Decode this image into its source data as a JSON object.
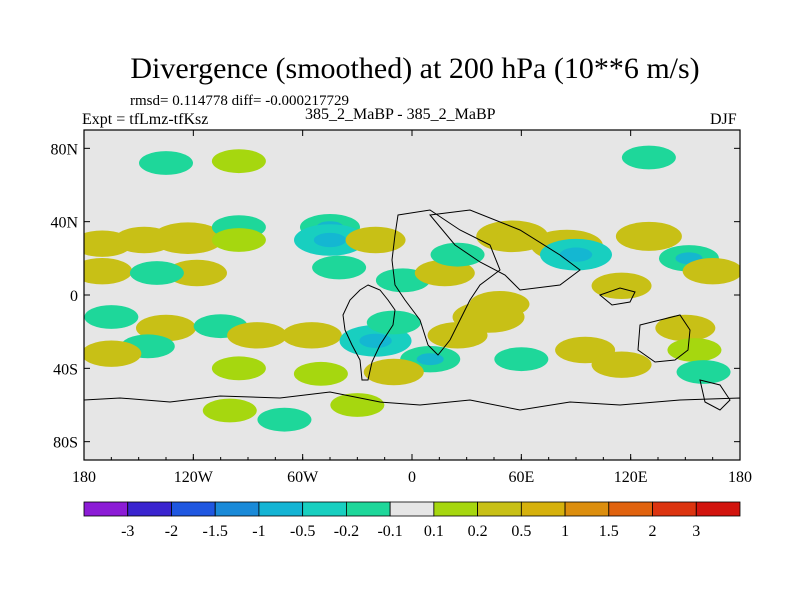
{
  "figure": {
    "title": "Divergence (smoothed) at 200 hPa (10**6 m/s)",
    "stats": "rmsd= 0.114778 diff= -0.000217729",
    "expt": "Expt = tfLmz-tfKsz",
    "center_label": "385_2_MaBP - 385_2_MaBP",
    "season": "DJF"
  },
  "chart_data": {
    "type": "heatmap",
    "title": "Divergence (smoothed) at 200 hPa (10**6 m/s)",
    "subtitle": "385_2_MaBP - 385_2_MaBP",
    "variable_units": "10**6 m/s",
    "xlim": [
      -180,
      180
    ],
    "ylim": [
      -90,
      90
    ],
    "x_ticks": [
      {
        "value": -180,
        "label": "180"
      },
      {
        "value": -120,
        "label": "120W"
      },
      {
        "value": -60,
        "label": "60W"
      },
      {
        "value": 0,
        "label": "0"
      },
      {
        "value": 60,
        "label": "60E"
      },
      {
        "value": 120,
        "label": "120E"
      },
      {
        "value": 180,
        "label": "180"
      }
    ],
    "y_ticks": [
      {
        "value": 80,
        "label": "80N"
      },
      {
        "value": 40,
        "label": "40N"
      },
      {
        "value": 0,
        "label": "0"
      },
      {
        "value": -40,
        "label": "40S"
      },
      {
        "value": -80,
        "label": "80S"
      }
    ],
    "colorbar": {
      "colors": [
        "#8c1cd6",
        "#3a24cf",
        "#1f57e0",
        "#1a8ad8",
        "#14b4d4",
        "#18cfc0",
        "#1ed79a",
        "#e6e6e6",
        "#a6d70f",
        "#c8c016",
        "#d6b10c",
        "#dc8e0e",
        "#e0620e",
        "#dc3410",
        "#d2140e"
      ],
      "boundaries": [
        "-3",
        "-2",
        "-1.5",
        "-1",
        "-0.5",
        "-0.2",
        "-0.1",
        "0.1",
        "0.2",
        "0.5",
        "1",
        "1.5",
        "2",
        "3"
      ]
    },
    "anomalies": [
      {
        "lon": -170,
        "lat": 28,
        "value": 0.2
      },
      {
        "lon": -147,
        "lat": 30,
        "value": 0.2
      },
      {
        "lon": -170,
        "lat": 13,
        "value": 0.2
      },
      {
        "lon": -123,
        "lat": 31,
        "value": 0.3
      },
      {
        "lon": -118,
        "lat": 12,
        "value": 0.2
      },
      {
        "lon": -140,
        "lat": 12,
        "value": -0.15
      },
      {
        "lon": -95,
        "lat": 37,
        "value": -0.15
      },
      {
        "lon": -95,
        "lat": 30,
        "value": 0.15
      },
      {
        "lon": -45,
        "lat": 37,
        "value": -0.2
      },
      {
        "lon": -45,
        "lat": 30,
        "value": -0.3
      },
      {
        "lon": -20,
        "lat": 30,
        "value": 0.2
      },
      {
        "lon": -40,
        "lat": 15,
        "value": -0.15
      },
      {
        "lon": -5,
        "lat": 8,
        "value": -0.15
      },
      {
        "lon": 18,
        "lat": 12,
        "value": 0.2
      },
      {
        "lon": 25,
        "lat": 22,
        "value": -0.15
      },
      {
        "lon": 55,
        "lat": 32,
        "value": 0.3
      },
      {
        "lon": 85,
        "lat": 27,
        "value": 0.3
      },
      {
        "lon": 90,
        "lat": 22,
        "value": -0.3
      },
      {
        "lon": 130,
        "lat": 32,
        "value": 0.25
      },
      {
        "lon": 152,
        "lat": 20,
        "value": -0.2
      },
      {
        "lon": 165,
        "lat": 13,
        "value": 0.2
      },
      {
        "lon": 115,
        "lat": 5,
        "value": 0.2
      },
      {
        "lon": -165,
        "lat": -12,
        "value": -0.15
      },
      {
        "lon": -135,
        "lat": -18,
        "value": 0.2
      },
      {
        "lon": -145,
        "lat": -28,
        "value": -0.15
      },
      {
        "lon": -165,
        "lat": -32,
        "value": 0.2
      },
      {
        "lon": -105,
        "lat": -17,
        "value": -0.15
      },
      {
        "lon": -85,
        "lat": -22,
        "value": 0.2
      },
      {
        "lon": -55,
        "lat": -22,
        "value": 0.2
      },
      {
        "lon": -20,
        "lat": -25,
        "value": -0.3
      },
      {
        "lon": -10,
        "lat": -15,
        "value": -0.15
      },
      {
        "lon": 10,
        "lat": -35,
        "value": -0.2
      },
      {
        "lon": 42,
        "lat": -12,
        "value": 0.3
      },
      {
        "lon": 48,
        "lat": -5,
        "value": 0.2
      },
      {
        "lon": 25,
        "lat": -22,
        "value": 0.2
      },
      {
        "lon": 60,
        "lat": -35,
        "value": -0.15
      },
      {
        "lon": 95,
        "lat": -30,
        "value": 0.2
      },
      {
        "lon": 115,
        "lat": -38,
        "value": 0.2
      },
      {
        "lon": 150,
        "lat": -18,
        "value": 0.2
      },
      {
        "lon": 155,
        "lat": -30,
        "value": 0.15
      },
      {
        "lon": 160,
        "lat": -42,
        "value": -0.15
      },
      {
        "lon": -95,
        "lat": -40,
        "value": 0.15
      },
      {
        "lon": -50,
        "lat": -43,
        "value": 0.15
      },
      {
        "lon": -10,
        "lat": -42,
        "value": 0.2
      },
      {
        "lon": -100,
        "lat": -63,
        "value": 0.15
      },
      {
        "lon": -70,
        "lat": -68,
        "value": -0.15
      },
      {
        "lon": -30,
        "lat": -60,
        "value": 0.15
      },
      {
        "lon": -135,
        "lat": 72,
        "value": -0.15
      },
      {
        "lon": -95,
        "lat": 73,
        "value": 0.15
      },
      {
        "lon": 130,
        "lat": 75,
        "value": -0.15
      }
    ],
    "coastlines_shown": true
  }
}
